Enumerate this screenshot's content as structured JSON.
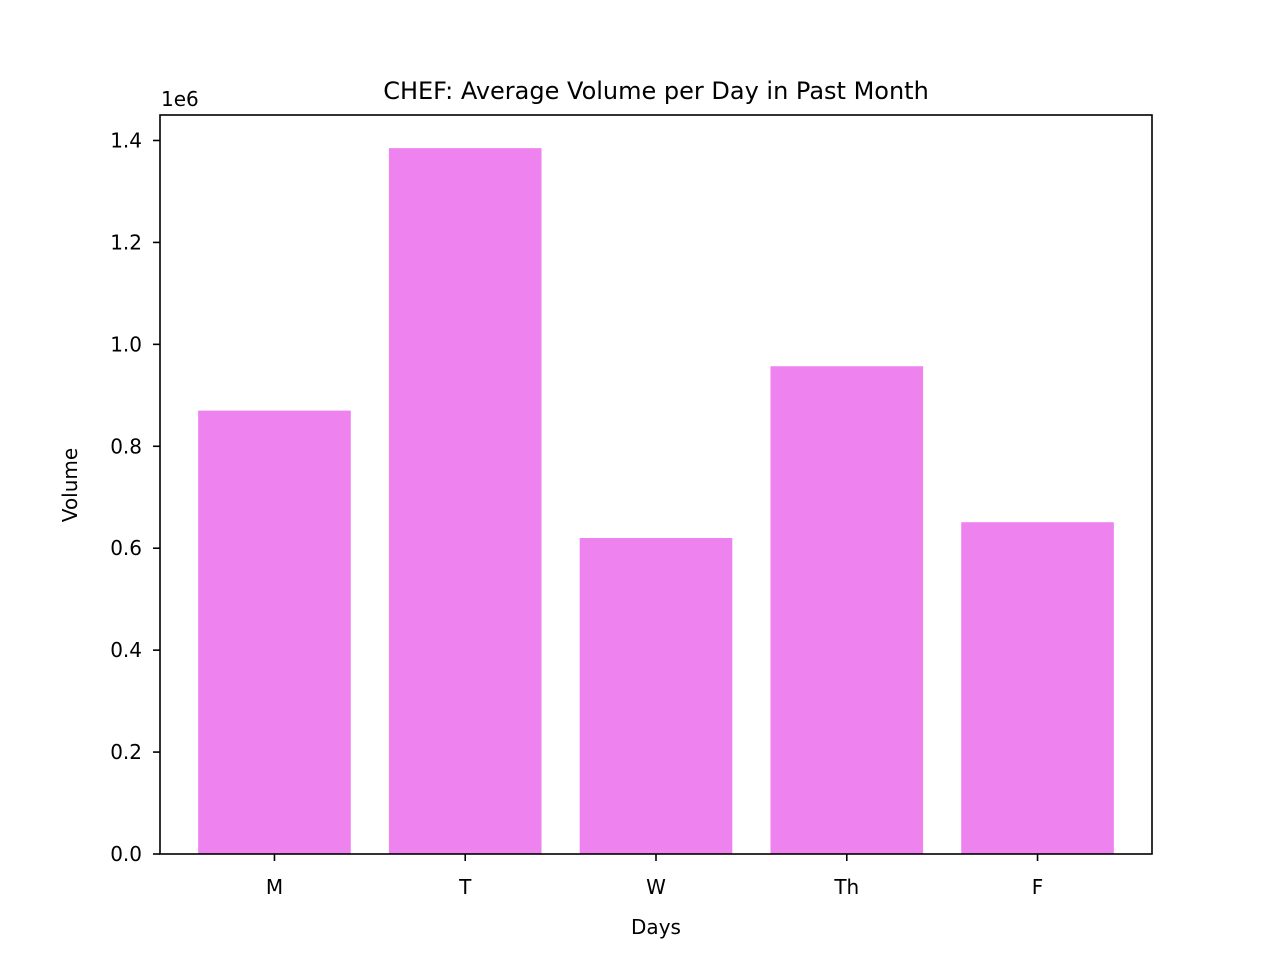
{
  "chart_data": {
    "type": "bar",
    "title": "CHEF: Average Volume per Day in Past Month",
    "xlabel": "Days",
    "ylabel": "Volume",
    "y_offset_label": "1e6",
    "categories": [
      "M",
      "T",
      "W",
      "Th",
      "F"
    ],
    "values": [
      870000,
      1385000,
      620000,
      957000,
      651000
    ],
    "ylim": [
      0,
      1450000
    ],
    "yticks": [
      0,
      200000,
      400000,
      600000,
      800000,
      1000000,
      1200000,
      1400000
    ],
    "ytick_labels": [
      "0.0",
      "0.2",
      "0.4",
      "0.6",
      "0.8",
      "1.0",
      "1.2",
      "1.4"
    ],
    "bar_color": "#ee82ee",
    "grid": false,
    "legend": "none"
  }
}
